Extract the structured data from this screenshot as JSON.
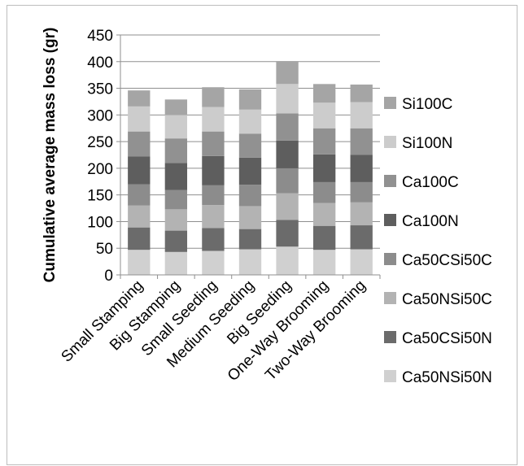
{
  "chart_data": {
    "type": "bar",
    "stacked": true,
    "ylabel": "Cumulative average mass loss (gr)",
    "ylim": [
      0,
      450
    ],
    "yticks": [
      0,
      50,
      100,
      150,
      200,
      250,
      300,
      350,
      400,
      450
    ],
    "grid": true,
    "legend_position": "right",
    "categories": [
      "Small Stamping",
      "Big Stamping",
      "Small Seeding",
      "Medium Seeding",
      "Big Seeding",
      "One-Way Brooming",
      "Two-Way Brooming"
    ],
    "series": [
      {
        "name": "Ca50NSi50N",
        "color": "#d0d0d0",
        "values": [
          47,
          43,
          45,
          48,
          53,
          47,
          48
        ]
      },
      {
        "name": "Ca50CSi50N",
        "color": "#6b6b6b",
        "values": [
          42,
          40,
          43,
          38,
          50,
          45,
          45
        ]
      },
      {
        "name": "Ca50NSi50C",
        "color": "#b3b3b3",
        "values": [
          41,
          40,
          43,
          43,
          50,
          43,
          43
        ]
      },
      {
        "name": "Ca50CSi50C",
        "color": "#8c8c8c",
        "values": [
          40,
          36,
          37,
          40,
          47,
          39,
          38
        ]
      },
      {
        "name": "Ca100N",
        "color": "#5e5e5e",
        "values": [
          52,
          51,
          55,
          51,
          52,
          52,
          51
        ]
      },
      {
        "name": "Ca100C",
        "color": "#919191",
        "values": [
          47,
          46,
          46,
          45,
          51,
          49,
          50
        ]
      },
      {
        "name": "Si100N",
        "color": "#cccccc",
        "values": [
          47,
          44,
          46,
          45,
          55,
          48,
          49
        ]
      },
      {
        "name": "Si100C",
        "color": "#a5a5a5",
        "values": [
          30,
          29,
          37,
          38,
          43,
          35,
          33
        ]
      }
    ]
  }
}
